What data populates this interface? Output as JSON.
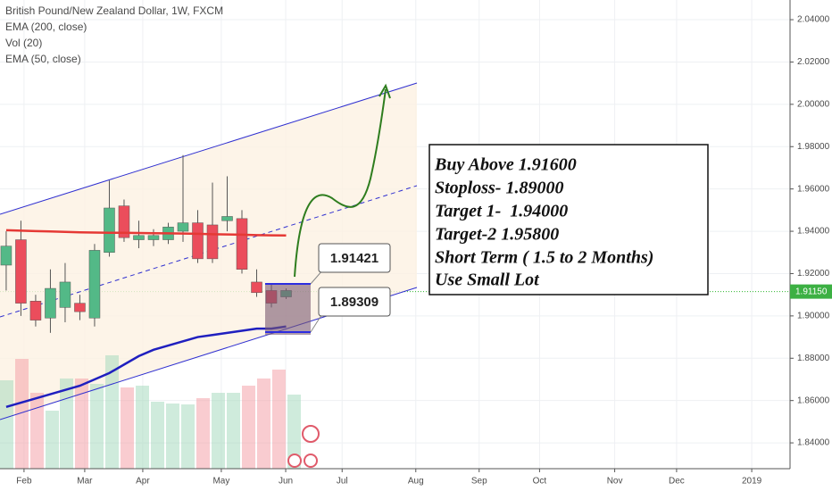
{
  "chart_data": {
    "type": "candlestick",
    "title": "British Pound/New Zealand Dollar, 1W, FXCM",
    "indicators": [
      "EMA (200, close)",
      "Vol (20)",
      "EMA (50, close)"
    ],
    "categories": [
      null,
      null,
      null,
      null,
      null,
      null,
      null,
      null,
      null,
      null,
      null,
      null,
      null,
      null,
      null,
      null,
      null,
      null,
      null,
      null
    ],
    "open": [
      1.924,
      1.936,
      1.907,
      1.899,
      1.904,
      1.906,
      1.899,
      1.93,
      1.952,
      1.936,
      1.936,
      1.936,
      1.94,
      1.944,
      1.943,
      1.945,
      1.946,
      1.916,
      1.912,
      1.909
    ],
    "high": [
      1.94,
      1.945,
      1.91,
      1.922,
      1.925,
      1.91,
      1.934,
      1.964,
      1.955,
      1.945,
      1.941,
      1.944,
      1.976,
      1.95,
      1.963,
      1.966,
      1.95,
      1.922,
      1.915,
      1.913
    ],
    "low": [
      1.912,
      1.9,
      1.895,
      1.892,
      1.897,
      1.898,
      1.895,
      1.928,
      1.935,
      1.932,
      1.933,
      1.934,
      1.935,
      1.925,
      1.925,
      1.94,
      1.92,
      1.909,
      1.904,
      1.908
    ],
    "close": [
      1.933,
      1.906,
      1.898,
      1.913,
      1.916,
      1.902,
      1.931,
      1.951,
      1.937,
      1.938,
      1.938,
      1.942,
      1.944,
      1.927,
      1.927,
      1.947,
      1.922,
      1.911,
      1.906,
      1.912
    ],
    "up_color": "#53b987",
    "down_color": "#eb4d5c",
    "series": [
      {
        "name": "EMA (200, close)",
        "color": "#e53935",
        "values": [
          1.9405,
          1.9403,
          1.9401,
          1.9399,
          1.9397,
          1.9395,
          1.9394,
          1.9393,
          1.9393,
          1.9392,
          1.9391,
          1.939,
          1.9389,
          1.9388,
          1.9386,
          1.9385,
          1.9384,
          1.9382,
          1.9381,
          1.938
        ]
      },
      {
        "name": "EMA (50, close)",
        "color": "#1f1fbf",
        "values": [
          1.857,
          1.859,
          1.861,
          1.863,
          1.865,
          1.867,
          1.87,
          1.873,
          1.877,
          1.881,
          1.884,
          1.886,
          1.888,
          1.89,
          1.891,
          1.892,
          1.893,
          1.894,
          1.894,
          1.895
        ]
      }
    ],
    "xlim": [
      -0.42,
      53.2
    ],
    "xticks": [
      {
        "value": 1.21,
        "label": "Feb"
      },
      {
        "value": 5.33,
        "label": "Mar"
      },
      {
        "value": 9.27,
        "label": "Apr"
      },
      {
        "value": 14.6,
        "label": "May"
      },
      {
        "value": 18.97,
        "label": "Jun"
      },
      {
        "value": 22.8,
        "label": "Jul"
      },
      {
        "value": 27.8,
        "label": "Aug"
      },
      {
        "value": 32.1,
        "label": "Sep"
      },
      {
        "value": 36.2,
        "label": "Oct"
      },
      {
        "value": 41.3,
        "label": "Nov"
      },
      {
        "value": 45.5,
        "label": "Dec"
      },
      {
        "value": 50.6,
        "label": "2019"
      }
    ],
    "ylim": [
      1.8278,
      2.0493
    ],
    "yticks": [
      {
        "value": 1.84,
        "label": "1.84000"
      },
      {
        "value": 1.86,
        "label": "1.86000"
      },
      {
        "value": 1.88,
        "label": "1.88000"
      },
      {
        "value": 1.9,
        "label": "1.90000"
      },
      {
        "value": 1.92,
        "label": "1.92000"
      },
      {
        "value": 1.94,
        "label": "1.94000"
      },
      {
        "value": 1.96,
        "label": "1.96000"
      },
      {
        "value": 1.98,
        "label": "1.98000"
      },
      {
        "value": 2.0,
        "label": "2.00000"
      },
      {
        "value": 2.02,
        "label": "2.02000"
      },
      {
        "value": 2.04,
        "label": "2.04000"
      }
    ],
    "current_price": {
      "value": 1.9115,
      "label": "1.91150"
    },
    "grid": true,
    "level_labels": [
      "1.91421",
      "1.89309"
    ],
    "note_lines": [
      "Buy Above 1.91600",
      "Stoploss- 1.89000",
      "Target 1-  1.94000",
      "Target-2 1.95800",
      "Short Term ( 1.5 to 2 Months)",
      "Use Small Lot"
    ]
  }
}
